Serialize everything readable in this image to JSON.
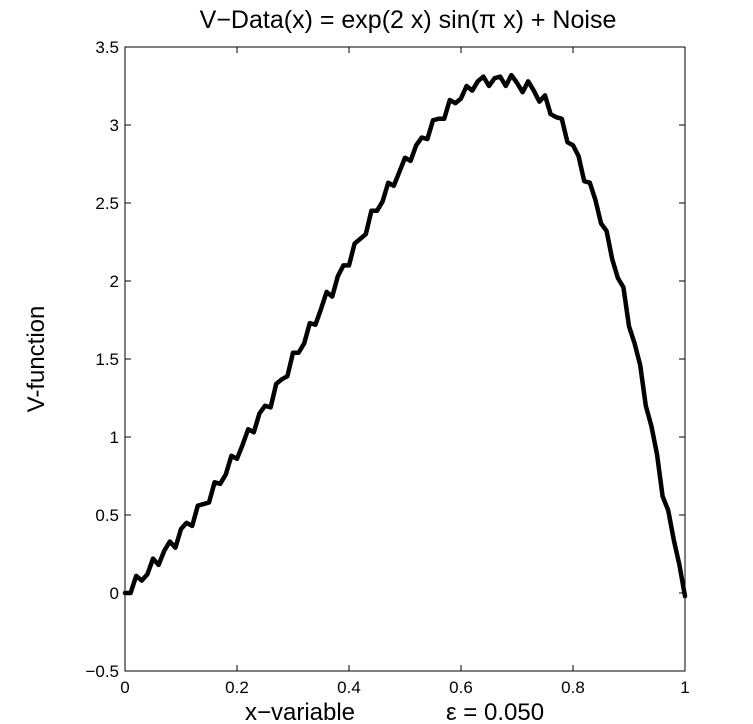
{
  "chart_data": {
    "type": "line",
    "title": "V−Data(x) = exp(2 x) sin(π x) + Noise",
    "xlabel": "x−variable",
    "annotation": "ε = 0.050",
    "ylabel": "V-function",
    "xlim": [
      0,
      1
    ],
    "ylim": [
      -0.5,
      3.5
    ],
    "x_ticks": [
      "0",
      "0.2",
      "0.4",
      "0.6",
      "0.8",
      "1"
    ],
    "y_ticks": [
      "−0.5",
      "0",
      "0.5",
      "1",
      "1.5",
      "2",
      "2.5",
      "3",
      "3.5"
    ],
    "grid": false,
    "line_color": "#000000",
    "series": [
      {
        "x": [
          0,
          0.01,
          0.02,
          0.03,
          0.04,
          0.05,
          0.06,
          0.07,
          0.08,
          0.09,
          0.1,
          0.11,
          0.12,
          0.13,
          0.14,
          0.15,
          0.16,
          0.17,
          0.18,
          0.19,
          0.2,
          0.21,
          0.22,
          0.23,
          0.24,
          0.25,
          0.26,
          0.27,
          0.28,
          0.29,
          0.3,
          0.31,
          0.32,
          0.33,
          0.34,
          0.35,
          0.36,
          0.37,
          0.38,
          0.39,
          0.4,
          0.41,
          0.42,
          0.43,
          0.44,
          0.45,
          0.46,
          0.47,
          0.48,
          0.49,
          0.5,
          0.51,
          0.52,
          0.53,
          0.54,
          0.55,
          0.56,
          0.57,
          0.58,
          0.59,
          0.6,
          0.61,
          0.62,
          0.63,
          0.64,
          0.65,
          0.66,
          0.67,
          0.68,
          0.69,
          0.7,
          0.71,
          0.72,
          0.73,
          0.74,
          0.75,
          0.76,
          0.77,
          0.78,
          0.79,
          0.8,
          0.81,
          0.82,
          0.83,
          0.84,
          0.85,
          0.86,
          0.87,
          0.88,
          0.89,
          0.9,
          0.91,
          0.92,
          0.93,
          0.94,
          0.95,
          0.96,
          0.97,
          0.98,
          0.99,
          1.0
        ],
        "y": [
          0.0,
          0.0,
          0.11,
          0.08,
          0.12,
          0.22,
          0.18,
          0.27,
          0.33,
          0.29,
          0.41,
          0.45,
          0.43,
          0.56,
          0.57,
          0.58,
          0.71,
          0.7,
          0.76,
          0.88,
          0.86,
          0.95,
          1.05,
          1.03,
          1.15,
          1.2,
          1.19,
          1.34,
          1.37,
          1.39,
          1.54,
          1.54,
          1.6,
          1.73,
          1.72,
          1.82,
          1.93,
          1.9,
          2.03,
          2.1,
          2.1,
          2.24,
          2.27,
          2.3,
          2.45,
          2.45,
          2.51,
          2.63,
          2.61,
          2.7,
          2.79,
          2.77,
          2.87,
          2.92,
          2.91,
          3.03,
          3.04,
          3.04,
          3.16,
          3.14,
          3.17,
          3.25,
          3.22,
          3.28,
          3.31,
          3.25,
          3.3,
          3.31,
          3.25,
          3.32,
          3.27,
          3.21,
          3.28,
          3.22,
          3.15,
          3.19,
          3.07,
          3.05,
          3.04,
          2.89,
          2.87,
          2.8,
          2.64,
          2.63,
          2.52,
          2.37,
          2.32,
          2.14,
          2.02,
          1.96,
          1.71,
          1.6,
          1.46,
          1.2,
          1.07,
          0.89,
          0.62,
          0.53,
          0.34,
          0.18,
          -0.02
        ]
      }
    ]
  }
}
